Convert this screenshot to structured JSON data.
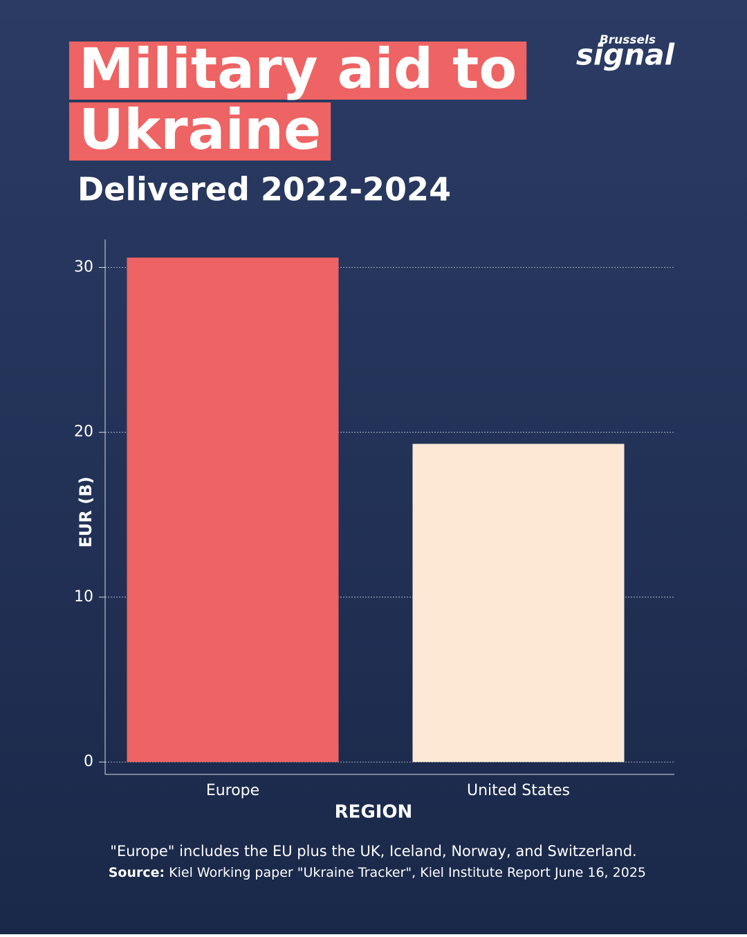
{
  "logo": {
    "top": "Brussels",
    "main": "signal"
  },
  "chart_data": {
    "type": "bar",
    "title": [
      "Military aid to",
      "Ukraine"
    ],
    "subtitle": "Delivered 2022-2024",
    "x_label": "REGION",
    "y_label": "EUR (B)",
    "categories": [
      "Europe",
      "United States"
    ],
    "values": [
      30.6,
      19.3
    ],
    "colors": [
      "#ee6363",
      "#fde8d5"
    ],
    "ylim": [
      -0.75,
      31.7
    ],
    "yticks": [
      0,
      10,
      20,
      30
    ],
    "grid": true,
    "note": "\"Europe\" includes the EU plus the UK, Iceland, Norway, and Switzerland.",
    "source_label": "Source:",
    "source": "Kiel Working paper \"Ukraine Tracker\", Kiel Institute Report June 16, 2025"
  }
}
